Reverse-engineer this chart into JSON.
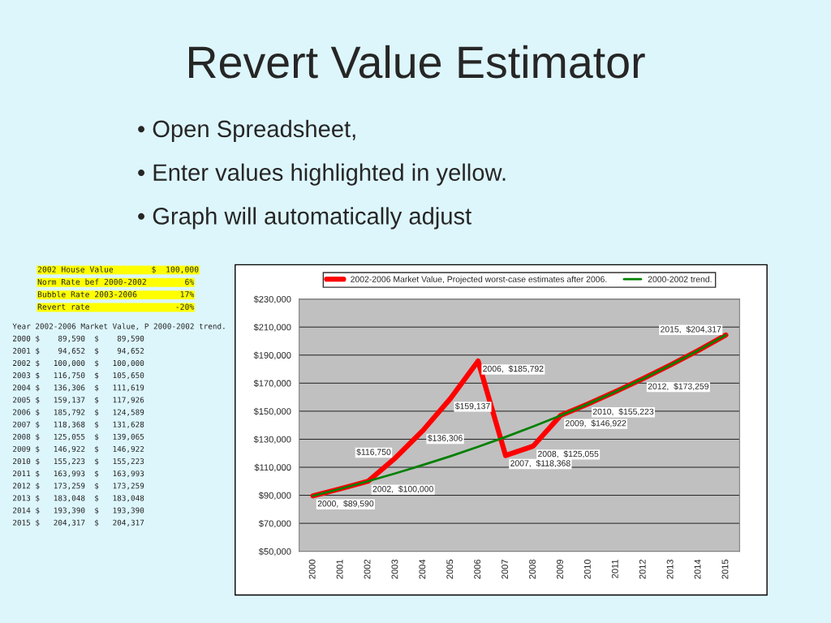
{
  "chart_data": {
    "type": "line",
    "title": "Revert Value Estimator",
    "categories": [
      "2000",
      "2001",
      "2002",
      "2003",
      "2004",
      "2005",
      "2006",
      "2007",
      "2008",
      "2009",
      "2010",
      "2011",
      "2012",
      "2013",
      "2014",
      "2015"
    ],
    "series": [
      {
        "name": "2002-2006 Market Value, Projected worst-case estimates after 2006.",
        "color": "#ff0000",
        "values": [
          89590,
          94652,
          100000,
          116750,
          136306,
          159137,
          185792,
          118368,
          125055,
          146922,
          155223,
          163993,
          173259,
          183048,
          193390,
          204317
        ],
        "value_labels": [
          "2000,  $89,590",
          null,
          "2002,  $100,000",
          "$116,750",
          "$136,306",
          "$159,137",
          "2006,  $185,792",
          "2007,  $118,368",
          "2008,  $125,055",
          "2009,  $146,922",
          "2010,  $155,223",
          null,
          "2012,  $173,259",
          null,
          null,
          "2015,  $204,317"
        ]
      },
      {
        "name": "2000-2002 trend.",
        "color": "#008000",
        "values": [
          89590,
          94652,
          100000,
          105650,
          111619,
          117926,
          124589,
          131628,
          139065,
          146922,
          155223,
          163993,
          173259,
          183048,
          193390,
          204317
        ]
      }
    ],
    "ylim": [
      50000,
      230000
    ],
    "yticks": [
      {
        "value": 50000,
        "label": "$50,000"
      },
      {
        "value": 70000,
        "label": "$70,000"
      },
      {
        "value": 90000,
        "label": "$90,000"
      },
      {
        "value": 110000,
        "label": "$110,000"
      },
      {
        "value": 130000,
        "label": "$130,000"
      },
      {
        "value": 150000,
        "label": "$150,000"
      },
      {
        "value": 170000,
        "label": "$170,000"
      },
      {
        "value": 190000,
        "label": "$190,000"
      },
      {
        "value": 210000,
        "label": "$210,000"
      },
      {
        "value": 230000,
        "label": "$230,000"
      }
    ],
    "grid": "y",
    "legend": "top",
    "marker": "none",
    "line_style": "solid",
    "annotations": [
      "• Open Spreadsheet,",
      "• Enter values highlighted in yellow.",
      "• Graph will automatically adjust",
      "2002 House Value        $  100,000",
      "Norm Rate bef 2000-2002        6%",
      "Bubble Rate 2003-2006         17%",
      "Revert rate                  -20%",
      "Year 2002-2006 Market Value, P 2000-2002 trend.",
      "2000 $    89,590  $    89,590",
      "2001 $    94,652  $    94,652",
      "2002 $   100,000  $   100,000",
      "2003 $   116,750  $   105,650",
      "2004 $   136,306  $   111,619",
      "2005 $   159,137  $   117,926",
      "2006 $   185,792  $   124,589",
      "2007 $   118,368  $   131,628",
      "2008 $   125,055  $   139,065",
      "2009 $   146,922  $   146,922",
      "2010 $   155,223  $   155,223",
      "2011 $   163,993  $   163,993",
      "2012 $   173,259  $   173,259",
      "2013 $   183,048  $   183,048",
      "2014 $   193,390  $   193,390",
      "2015 $   204,317  $   204,317"
    ]
  }
}
